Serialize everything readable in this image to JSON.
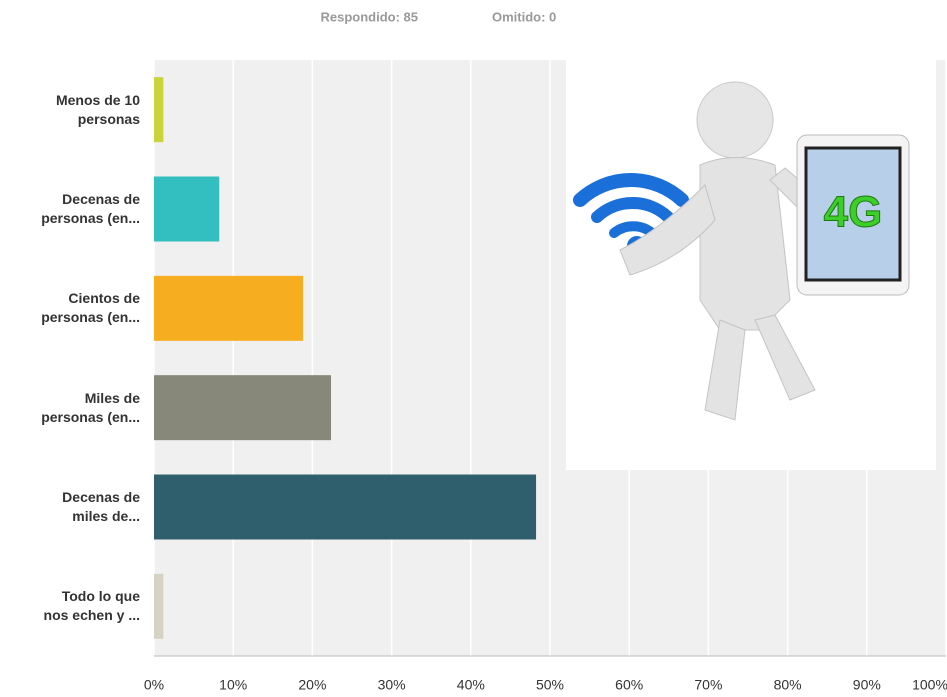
{
  "header": {
    "answered": "Respondido: 85",
    "skipped": "Omitido: 0"
  },
  "chart_data": {
    "type": "bar",
    "orientation": "horizontal",
    "categories": [
      "Menos de 10\npersonas",
      "Decenas de\npersonas (en...",
      "Cientos de\npersonas (en...",
      "Miles de\npersonas (en...",
      "Decenas de\nmiles de...",
      "Todo lo que\nnos echen y ..."
    ],
    "values": [
      1.18,
      8.24,
      18.82,
      22.35,
      48.24,
      1.18
    ],
    "colors": [
      "#c9d43a",
      "#33bec0",
      "#f6ad1f",
      "#87877a",
      "#2f5f6c",
      "#d6d3c5"
    ],
    "xlim": [
      0,
      100
    ],
    "xticks": [
      {
        "value": 0,
        "label": "0%"
      },
      {
        "value": 10,
        "label": "10%"
      },
      {
        "value": 20,
        "label": "20%"
      },
      {
        "value": 30,
        "label": "30%"
      },
      {
        "value": 40,
        "label": "40%"
      },
      {
        "value": 50,
        "label": "50%"
      },
      {
        "value": 60,
        "label": "60%"
      },
      {
        "value": 70,
        "label": "70%"
      },
      {
        "value": 80,
        "label": "80%"
      },
      {
        "value": 90,
        "label": "90%"
      },
      {
        "value": 100,
        "label": "100%"
      }
    ],
    "grid": true,
    "image_label": "4G"
  }
}
